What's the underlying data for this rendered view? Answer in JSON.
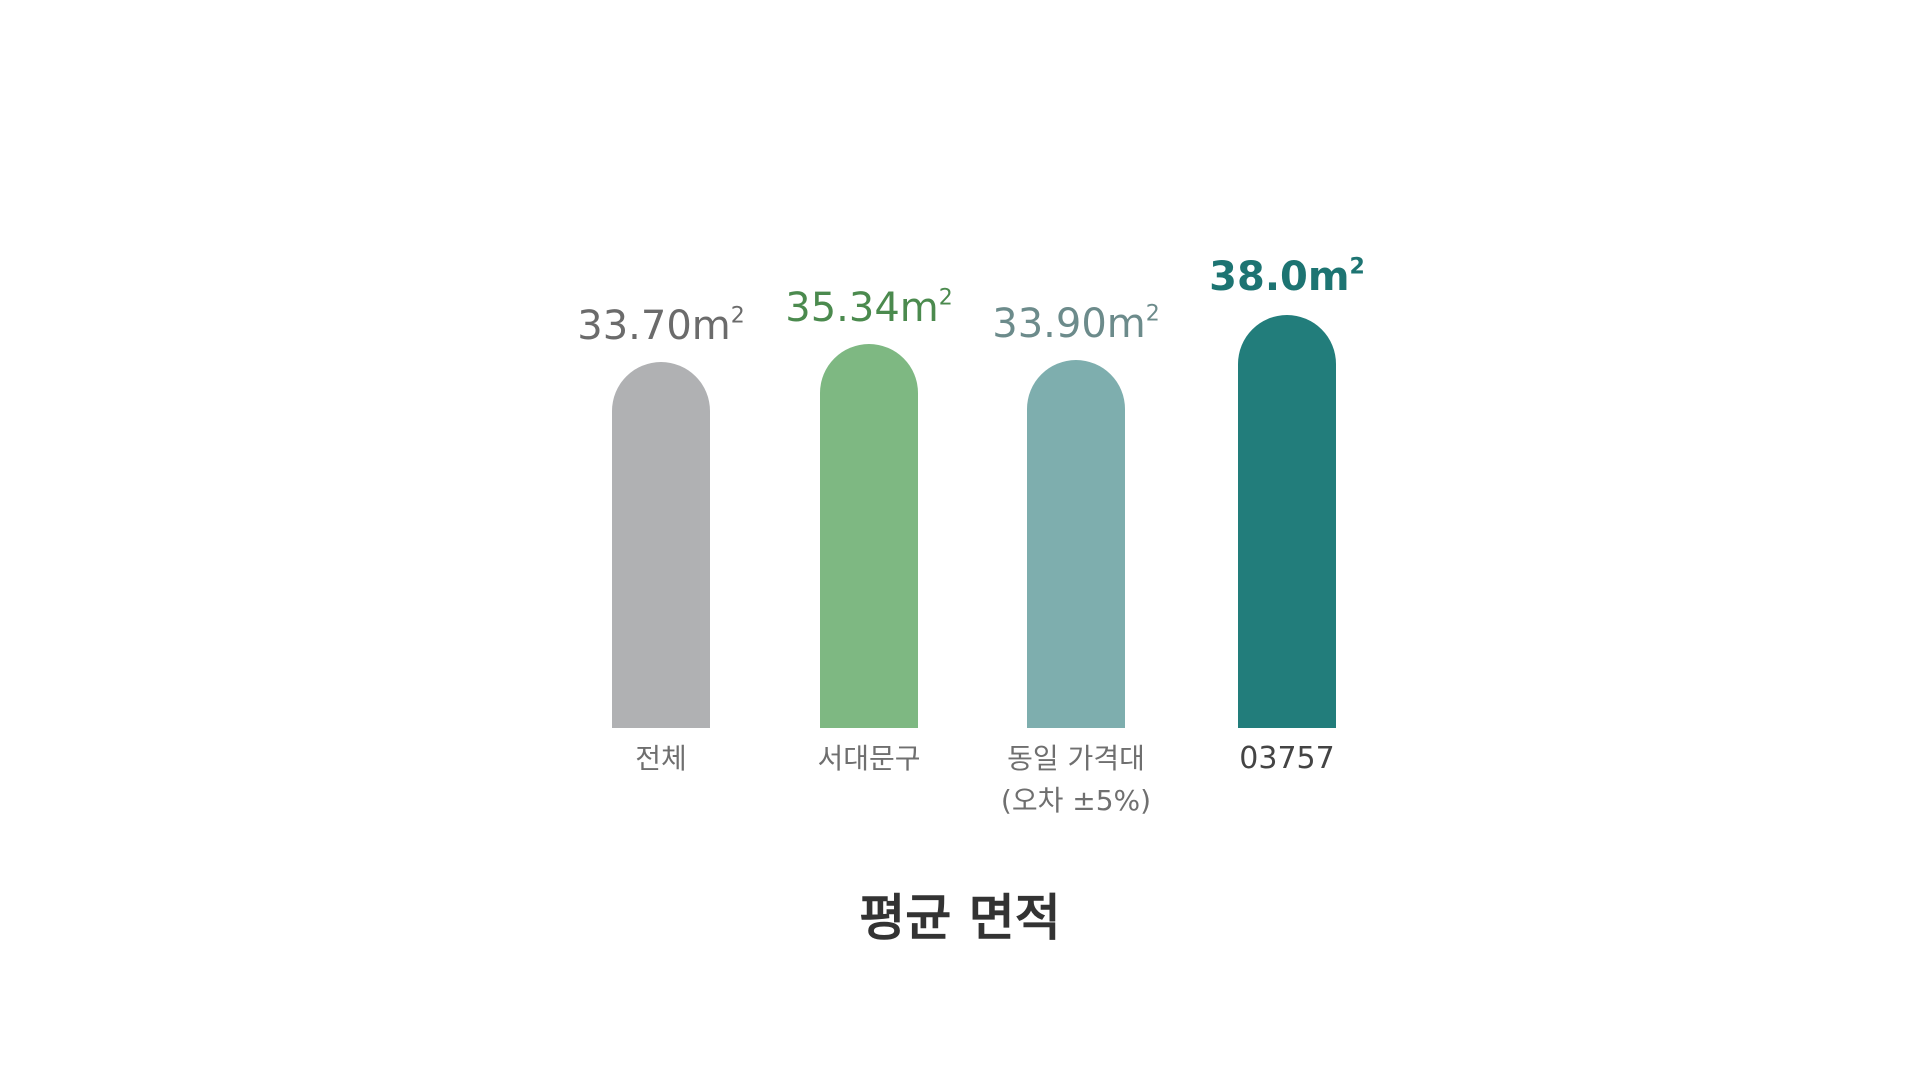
{
  "chart_data": {
    "type": "bar",
    "title": "평균 면적",
    "unit": "m",
    "unit_superscript": "2",
    "ylim": [
      0,
      38.0
    ],
    "categories": [
      "전체",
      "서대문구",
      "동일 가격대\n(오차 ±5%)",
      "03757"
    ],
    "values": [
      33.7,
      35.34,
      33.9,
      38.0
    ],
    "value_labels": [
      "33.70",
      "35.34",
      "33.90",
      "38.0"
    ],
    "highlight_index": 3,
    "colors": {
      "bars": [
        "#b0b1b3",
        "#7eb882",
        "#7eaeae",
        "#227d7b"
      ],
      "value_labels": [
        "#6b6b6b",
        "#4b8a4e",
        "#6c8b8b",
        "#1d7472"
      ]
    }
  }
}
